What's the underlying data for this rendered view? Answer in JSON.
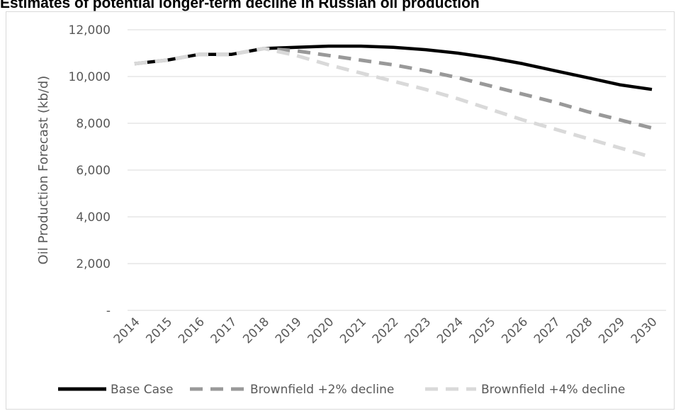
{
  "chart_data": {
    "type": "line",
    "title": "Estimates of potential longer-term decline in Russian oil production",
    "ylabel": "Oil Production Forecast (kb/d)",
    "xlabel": "",
    "ylim": [
      0,
      12000
    ],
    "yticks": [
      {
        "value": 0,
        "label": "-"
      },
      {
        "value": 2000,
        "label": "2,000"
      },
      {
        "value": 4000,
        "label": "4,000"
      },
      {
        "value": 6000,
        "label": "6,000"
      },
      {
        "value": 8000,
        "label": "8,000"
      },
      {
        "value": 10000,
        "label": "10,000"
      },
      {
        "value": 12000,
        "label": "12,000"
      }
    ],
    "grid": true,
    "legend_position": "bottom",
    "categories": [
      "2014",
      "2015",
      "2016",
      "2017",
      "2018",
      "2019",
      "2020",
      "2021",
      "2022",
      "2023",
      "2024",
      "2025",
      "2026",
      "2027",
      "2028",
      "2029",
      "2030"
    ],
    "series": [
      {
        "name": "Base Case",
        "color": "#000000",
        "dash": "solid",
        "values": [
          10550,
          10700,
          10950,
          10950,
          11200,
          11250,
          11300,
          11300,
          11250,
          11150,
          11000,
          10800,
          10550,
          10250,
          9950,
          9650,
          9450
        ]
      },
      {
        "name": "Brownfield +2% decline",
        "color": "#999999",
        "dash": "dashed",
        "values": [
          10550,
          10700,
          10950,
          10950,
          11200,
          11100,
          10900,
          10700,
          10500,
          10250,
          9950,
          9600,
          9250,
          8900,
          8500,
          8150,
          7800
        ]
      },
      {
        "name": "Brownfield +4% decline",
        "color": "#d9d9d9",
        "dash": "dashed",
        "values": [
          10550,
          10700,
          10950,
          10950,
          11200,
          10900,
          10500,
          10150,
          9800,
          9450,
          9050,
          8600,
          8150,
          7750,
          7350,
          6950,
          6550
        ]
      }
    ]
  }
}
